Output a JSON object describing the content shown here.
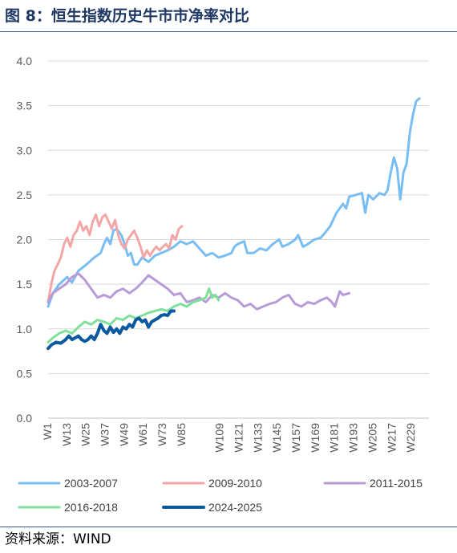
{
  "header": {
    "title": "图 8：恒生指数历史牛市市净率对比"
  },
  "footer": {
    "source": "资料来源：WIND"
  },
  "chart_data": {
    "type": "line",
    "title": "图 8：恒生指数历史牛市市净率对比",
    "xlabel": "",
    "ylabel": "",
    "ylim": [
      0,
      4
    ],
    "yticks": [
      "0.0",
      "0.5",
      "1.0",
      "1.5",
      "2.0",
      "2.5",
      "3.0",
      "3.5",
      "4.0"
    ],
    "xticks": [
      "W1",
      "W13",
      "W25",
      "W37",
      "W49",
      "W61",
      "W73",
      "W85",
      "W109",
      "W121",
      "W133",
      "W145",
      "W157",
      "W169",
      "W181",
      "W193",
      "W205",
      "W217",
      "W229"
    ],
    "x_range_weeks": [
      1,
      240
    ],
    "grid": true,
    "legend_position": "bottom",
    "series": [
      {
        "name": "2003-2007",
        "color": "#79bef2",
        "width": 3,
        "points": [
          [
            1,
            1.25
          ],
          [
            4,
            1.4
          ],
          [
            8,
            1.5
          ],
          [
            13,
            1.58
          ],
          [
            16,
            1.52
          ],
          [
            20,
            1.65
          ],
          [
            25,
            1.72
          ],
          [
            30,
            1.8
          ],
          [
            34,
            1.85
          ],
          [
            36,
            1.95
          ],
          [
            38,
            2.02
          ],
          [
            40,
            1.95
          ],
          [
            42,
            2.1
          ],
          [
            44,
            2.12
          ],
          [
            47,
            2.05
          ],
          [
            49,
            1.95
          ],
          [
            51,
            1.82
          ],
          [
            53,
            1.85
          ],
          [
            55,
            1.72
          ],
          [
            57,
            1.72
          ],
          [
            60,
            1.8
          ],
          [
            64,
            1.75
          ],
          [
            68,
            1.82
          ],
          [
            72,
            1.85
          ],
          [
            76,
            1.88
          ],
          [
            80,
            1.92
          ],
          [
            84,
            1.98
          ],
          [
            88,
            1.95
          ],
          [
            92,
            1.98
          ],
          [
            96,
            1.9
          ],
          [
            100,
            1.82
          ],
          [
            104,
            1.85
          ],
          [
            108,
            1.8
          ],
          [
            112,
            1.82
          ],
          [
            116,
            1.85
          ],
          [
            118,
            1.92
          ],
          [
            120,
            1.95
          ],
          [
            124,
            1.98
          ],
          [
            126,
            1.85
          ],
          [
            130,
            1.85
          ],
          [
            134,
            1.9
          ],
          [
            138,
            1.88
          ],
          [
            142,
            1.95
          ],
          [
            146,
            2.0
          ],
          [
            148,
            1.92
          ],
          [
            152,
            1.95
          ],
          [
            156,
            2.0
          ],
          [
            158,
            2.05
          ],
          [
            161,
            1.92
          ],
          [
            164,
            1.95
          ],
          [
            168,
            2.0
          ],
          [
            172,
            2.02
          ],
          [
            175,
            2.08
          ],
          [
            178,
            2.15
          ],
          [
            182,
            2.3
          ],
          [
            186,
            2.4
          ],
          [
            188,
            2.35
          ],
          [
            190,
            2.48
          ],
          [
            194,
            2.5
          ],
          [
            198,
            2.52
          ],
          [
            200,
            2.3
          ],
          [
            202,
            2.5
          ],
          [
            205,
            2.45
          ],
          [
            209,
            2.52
          ],
          [
            212,
            2.5
          ],
          [
            214,
            2.55
          ],
          [
            216,
            2.75
          ],
          [
            218,
            2.92
          ],
          [
            220,
            2.8
          ],
          [
            222,
            2.45
          ],
          [
            224,
            2.75
          ],
          [
            226,
            2.85
          ],
          [
            228,
            3.2
          ],
          [
            230,
            3.4
          ],
          [
            232,
            3.55
          ],
          [
            234,
            3.58
          ]
        ]
      },
      {
        "name": "2009-2010",
        "color": "#f2a6a6",
        "width": 3,
        "points": [
          [
            1,
            1.3
          ],
          [
            3,
            1.5
          ],
          [
            5,
            1.65
          ],
          [
            7,
            1.72
          ],
          [
            9,
            1.8
          ],
          [
            11,
            1.95
          ],
          [
            13,
            2.02
          ],
          [
            15,
            1.92
          ],
          [
            17,
            2.05
          ],
          [
            19,
            2.1
          ],
          [
            21,
            2.2
          ],
          [
            23,
            2.1
          ],
          [
            25,
            2.15
          ],
          [
            27,
            2.05
          ],
          [
            29,
            2.2
          ],
          [
            31,
            2.28
          ],
          [
            33,
            2.15
          ],
          [
            35,
            2.25
          ],
          [
            37,
            2.28
          ],
          [
            39,
            2.2
          ],
          [
            41,
            2.12
          ],
          [
            43,
            2.22
          ],
          [
            45,
            2.05
          ],
          [
            47,
            1.95
          ],
          [
            49,
            1.9
          ],
          [
            51,
            2.0
          ],
          [
            53,
            2.05
          ],
          [
            55,
            2.1
          ],
          [
            57,
            2.02
          ],
          [
            59,
            1.92
          ],
          [
            61,
            1.8
          ],
          [
            63,
            1.88
          ],
          [
            65,
            1.82
          ],
          [
            67,
            1.88
          ],
          [
            69,
            1.92
          ],
          [
            71,
            1.88
          ],
          [
            73,
            1.92
          ],
          [
            75,
            1.95
          ],
          [
            77,
            1.9
          ],
          [
            79,
            2.05
          ],
          [
            81,
            2.0
          ],
          [
            83,
            2.12
          ],
          [
            85,
            2.15
          ]
        ]
      },
      {
        "name": "2011-2015",
        "color": "#b89ad6",
        "width": 3,
        "points": [
          [
            1,
            1.3
          ],
          [
            4,
            1.4
          ],
          [
            8,
            1.45
          ],
          [
            12,
            1.5
          ],
          [
            16,
            1.58
          ],
          [
            20,
            1.62
          ],
          [
            24,
            1.55
          ],
          [
            28,
            1.45
          ],
          [
            32,
            1.35
          ],
          [
            36,
            1.38
          ],
          [
            40,
            1.35
          ],
          [
            44,
            1.42
          ],
          [
            48,
            1.45
          ],
          [
            52,
            1.4
          ],
          [
            56,
            1.45
          ],
          [
            60,
            1.52
          ],
          [
            64,
            1.6
          ],
          [
            68,
            1.55
          ],
          [
            72,
            1.5
          ],
          [
            76,
            1.45
          ],
          [
            80,
            1.38
          ],
          [
            84,
            1.4
          ],
          [
            88,
            1.3
          ],
          [
            92,
            1.32
          ],
          [
            96,
            1.35
          ],
          [
            100,
            1.3
          ],
          [
            104,
            1.38
          ],
          [
            108,
            1.35
          ],
          [
            112,
            1.4
          ],
          [
            116,
            1.35
          ],
          [
            120,
            1.32
          ],
          [
            124,
            1.25
          ],
          [
            128,
            1.28
          ],
          [
            132,
            1.22
          ],
          [
            136,
            1.25
          ],
          [
            140,
            1.28
          ],
          [
            144,
            1.3
          ],
          [
            148,
            1.35
          ],
          [
            152,
            1.38
          ],
          [
            156,
            1.28
          ],
          [
            160,
            1.25
          ],
          [
            164,
            1.3
          ],
          [
            168,
            1.28
          ],
          [
            172,
            1.32
          ],
          [
            176,
            1.35
          ],
          [
            179,
            1.3
          ],
          [
            181,
            1.25
          ],
          [
            184,
            1.42
          ],
          [
            186,
            1.38
          ],
          [
            190,
            1.4
          ]
        ]
      },
      {
        "name": "2016-2018",
        "color": "#7fe09a",
        "width": 3,
        "points": [
          [
            1,
            0.85
          ],
          [
            4,
            0.9
          ],
          [
            8,
            0.95
          ],
          [
            12,
            0.98
          ],
          [
            16,
            0.95
          ],
          [
            20,
            1.02
          ],
          [
            24,
            1.08
          ],
          [
            28,
            1.05
          ],
          [
            32,
            1.1
          ],
          [
            36,
            1.08
          ],
          [
            40,
            1.05
          ],
          [
            44,
            1.12
          ],
          [
            48,
            1.1
          ],
          [
            52,
            1.15
          ],
          [
            56,
            1.12
          ],
          [
            60,
            1.15
          ],
          [
            64,
            1.18
          ],
          [
            68,
            1.2
          ],
          [
            72,
            1.22
          ],
          [
            76,
            1.2
          ],
          [
            80,
            1.25
          ],
          [
            84,
            1.28
          ],
          [
            88,
            1.25
          ],
          [
            92,
            1.3
          ],
          [
            96,
            1.32
          ],
          [
            100,
            1.35
          ],
          [
            102,
            1.45
          ],
          [
            104,
            1.35
          ],
          [
            106,
            1.38
          ],
          [
            108,
            1.32
          ]
        ]
      },
      {
        "name": "2024-2025",
        "color": "#0b5aa0",
        "width": 4,
        "points": [
          [
            1,
            0.78
          ],
          [
            3,
            0.82
          ],
          [
            6,
            0.85
          ],
          [
            9,
            0.84
          ],
          [
            12,
            0.88
          ],
          [
            14,
            0.92
          ],
          [
            16,
            0.88
          ],
          [
            18,
            0.9
          ],
          [
            20,
            0.92
          ],
          [
            22,
            0.88
          ],
          [
            24,
            0.86
          ],
          [
            26,
            0.88
          ],
          [
            28,
            0.92
          ],
          [
            30,
            0.88
          ],
          [
            32,
            0.95
          ],
          [
            34,
            1.05
          ],
          [
            36,
            0.98
          ],
          [
            38,
            0.95
          ],
          [
            40,
            1.02
          ],
          [
            42,
            0.96
          ],
          [
            44,
            1.0
          ],
          [
            46,
            0.95
          ],
          [
            48,
            1.02
          ],
          [
            50,
            1.0
          ],
          [
            52,
            1.05
          ],
          [
            54,
            1.02
          ],
          [
            56,
            1.1
          ],
          [
            58,
            1.12
          ],
          [
            60,
            1.08
          ],
          [
            62,
            1.1
          ],
          [
            64,
            1.02
          ],
          [
            66,
            1.08
          ],
          [
            68,
            1.1
          ],
          [
            70,
            1.12
          ],
          [
            72,
            1.15
          ],
          [
            74,
            1.16
          ],
          [
            76,
            1.15
          ],
          [
            78,
            1.2
          ],
          [
            80,
            1.2
          ]
        ]
      }
    ]
  }
}
